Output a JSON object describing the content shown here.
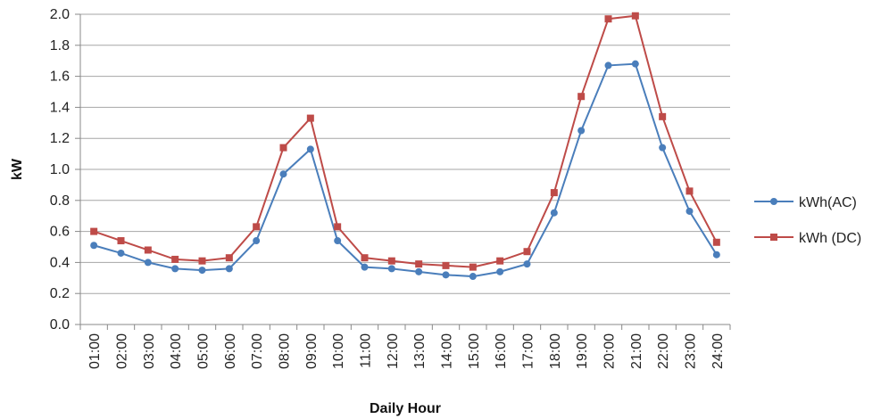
{
  "chart_data": {
    "type": "line",
    "title": "",
    "xlabel": "Daily Hour",
    "ylabel": "kW",
    "ylim": [
      0,
      2.0
    ],
    "yticks": [
      "0.0",
      "0.2",
      "0.4",
      "0.6",
      "0.8",
      "1.0",
      "1.2",
      "1.4",
      "1.6",
      "1.8",
      "2.0"
    ],
    "grid": "horizontal",
    "legend_position": "right",
    "categories": [
      "01:00",
      "02:00",
      "03:00",
      "04:00",
      "05:00",
      "06:00",
      "07:00",
      "08:00",
      "09:00",
      "10:00",
      "11:00",
      "12:00",
      "13:00",
      "14:00",
      "15:00",
      "16:00",
      "17:00",
      "18:00",
      "19:00",
      "20:00",
      "21:00",
      "22:00",
      "23:00",
      "24:00"
    ],
    "series": [
      {
        "name": "kWh(AC)",
        "color": "#4a7ebb",
        "marker": "circle",
        "values": [
          0.51,
          0.46,
          0.4,
          0.36,
          0.35,
          0.36,
          0.54,
          0.97,
          1.13,
          0.54,
          0.37,
          0.36,
          0.34,
          0.32,
          0.31,
          0.34,
          0.39,
          0.72,
          1.25,
          1.67,
          1.68,
          1.14,
          0.73,
          0.45
        ]
      },
      {
        "name": "kWh (DC)",
        "color": "#be4b48",
        "marker": "square",
        "values": [
          0.6,
          0.54,
          0.48,
          0.42,
          0.41,
          0.43,
          0.63,
          1.14,
          1.33,
          0.63,
          0.43,
          0.41,
          0.39,
          0.38,
          0.37,
          0.41,
          0.47,
          0.85,
          1.47,
          1.97,
          1.99,
          1.34,
          0.86,
          0.53
        ]
      }
    ]
  }
}
